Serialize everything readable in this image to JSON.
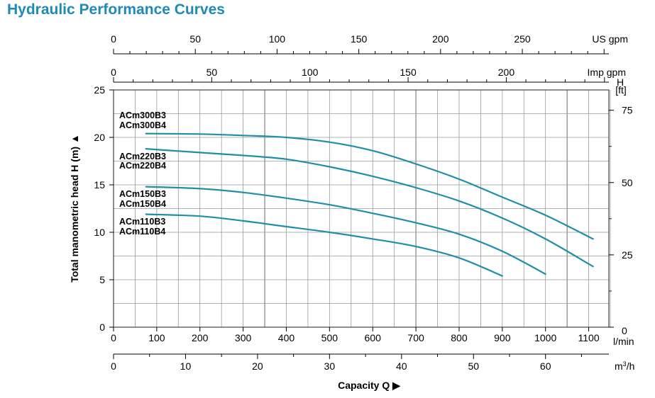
{
  "title": "Hydraulic Performance Curves",
  "chart_data": {
    "type": "line",
    "title": "Hydraulic Performance Curves",
    "xlabel": "Capacity Q",
    "ylabel": "Total manometric head H (m)",
    "xlim": [
      0,
      1150
    ],
    "ylim": [
      0,
      25
    ],
    "grid": true,
    "x_unit": "l/min",
    "x_ticks": [
      "0",
      "100",
      "200",
      "300",
      "400",
      "500",
      "600",
      "700",
      "800",
      "900",
      "1000",
      "1100"
    ],
    "y_ticks": [
      "0",
      "5",
      "10",
      "15",
      "20",
      "25"
    ],
    "secondary_axes": {
      "m3h": {
        "unit": "m³/h",
        "unit_base": "m",
        "unit_sup": "3",
        "unit_rest": "/h",
        "ticks": [
          "0",
          "10",
          "20",
          "30",
          "40",
          "50",
          "60"
        ],
        "values": [
          0,
          10,
          20,
          30,
          40,
          50,
          60
        ]
      },
      "us_gpm": {
        "unit": "US gpm",
        "ticks": [
          "0",
          "50",
          "100",
          "150",
          "200",
          "250"
        ],
        "values": [
          0,
          50,
          100,
          150,
          200,
          250
        ]
      },
      "imp_gpm": {
        "unit": "Imp gpm",
        "ticks": [
          "0",
          "50",
          "100",
          "150",
          "200"
        ],
        "values": [
          0,
          50,
          100,
          150,
          200
        ]
      },
      "ft": {
        "unit_top": "H",
        "unit": "[ft]",
        "ticks": [
          "0",
          "25",
          "50",
          "75"
        ],
        "values": [
          0,
          25,
          50,
          75
        ]
      }
    },
    "series": [
      {
        "name": "ACm300B3\nACm300B4",
        "label_lines": [
          "ACm300B3",
          "ACm300B4"
        ],
        "x": [
          75,
          200,
          300,
          400,
          500,
          600,
          700,
          800,
          900,
          1000,
          1110
        ],
        "y": [
          20.4,
          20.35,
          20.2,
          20.0,
          19.5,
          18.6,
          17.2,
          15.6,
          13.7,
          11.8,
          9.3
        ]
      },
      {
        "name": "ACm220B3\nACm220B4",
        "label_lines": [
          "ACm220B3",
          "ACm220B4"
        ],
        "x": [
          75,
          200,
          300,
          400,
          500,
          600,
          700,
          800,
          900,
          1000,
          1110
        ],
        "y": [
          18.8,
          18.4,
          18.1,
          17.7,
          16.9,
          15.9,
          14.7,
          13.3,
          11.5,
          9.3,
          6.4
        ]
      },
      {
        "name": "ACm150B3\nACm150B4",
        "label_lines": [
          "ACm150B3",
          "ACm150B4"
        ],
        "x": [
          75,
          200,
          300,
          400,
          500,
          600,
          700,
          800,
          900,
          1000
        ],
        "y": [
          14.8,
          14.6,
          14.2,
          13.6,
          12.9,
          12.0,
          11.0,
          9.8,
          8.0,
          5.6
        ]
      },
      {
        "name": "ACm110B3\nACm110B4",
        "label_lines": [
          "ACm110B3",
          "ACm110B4"
        ],
        "x": [
          75,
          200,
          300,
          400,
          500,
          600,
          700,
          800,
          900
        ],
        "y": [
          11.9,
          11.7,
          11.2,
          10.6,
          10.0,
          9.3,
          8.5,
          7.3,
          5.4
        ]
      }
    ],
    "colors": {
      "curve": "#1f8fa8",
      "grid": "#9a9a9a",
      "title": "#1f8ab7"
    }
  }
}
